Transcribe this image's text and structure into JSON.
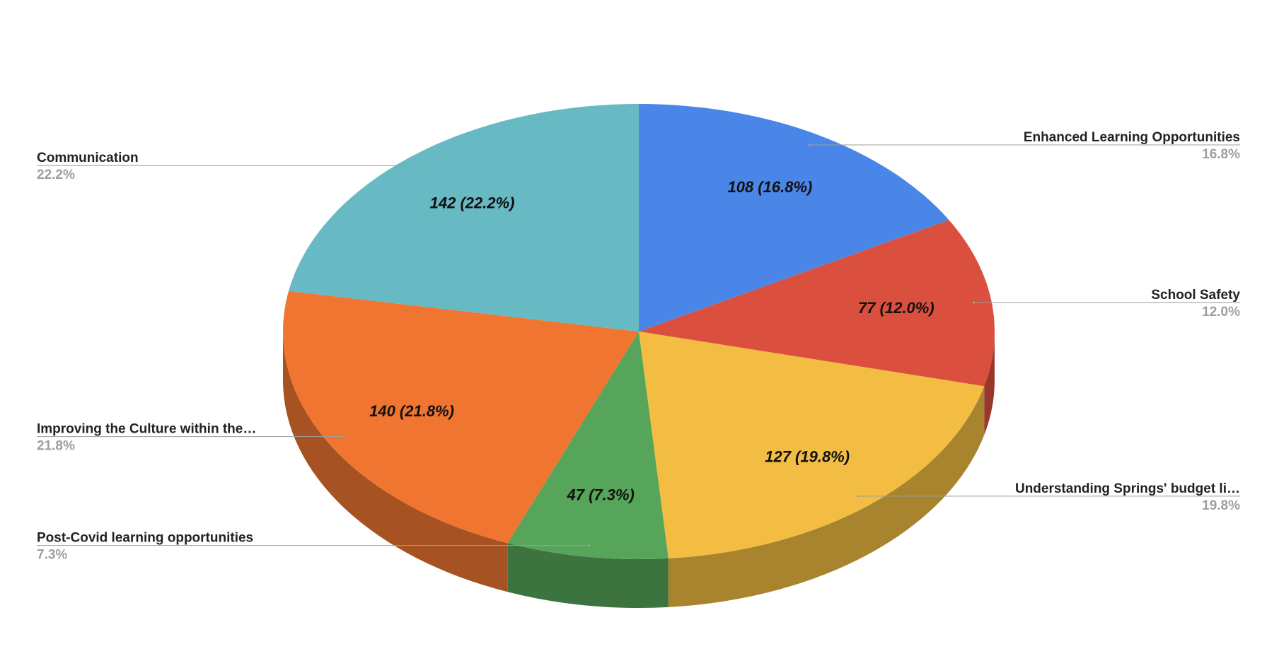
{
  "chart_data": {
    "type": "pie",
    "three_d": true,
    "categories": [
      "Enhanced Learning Opportunities",
      "School Safety",
      "Understanding Springs' budget li…",
      "Post-Covid learning opportunities",
      "Improving the Culture within the…",
      "Communication"
    ],
    "values": [
      108,
      77,
      127,
      47,
      140,
      142
    ],
    "value_labels": [
      "108 (16.8%)",
      "77 (12.0%)",
      "127 (19.8%)",
      "47 (7.3%)",
      "140 (21.8%)",
      "142 (22.2%)"
    ],
    "percent_labels": [
      "16.8%",
      "12.0%",
      "19.8%",
      "7.3%",
      "21.8%",
      "22.2%"
    ],
    "colors": [
      "#4a86e8",
      "#db4f3f",
      "#f2bd42",
      "#57a55a",
      "#ef7530",
      "#67b9c3"
    ]
  }
}
